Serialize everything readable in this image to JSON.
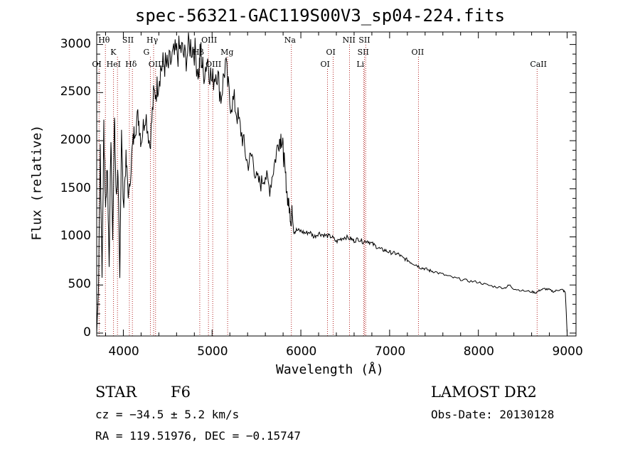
{
  "title": "spec-56321-GAC119S00V3_sp04-224.fits",
  "info": {
    "class_label": "STAR",
    "subclass": "F6",
    "cz": "cz = −34.5 ± 5.2 km/s",
    "radec": "RA = 119.51976, DEC =  −0.15747",
    "survey": "LAMOST DR2",
    "obs_date": "Obs-Date: 20130128"
  },
  "chart_data": {
    "type": "line",
    "title": "spec-56321-GAC119S00V3_sp04-224.fits",
    "xlabel": "Wavelength (Å)",
    "ylabel": "Flux (relative)",
    "xlim": [
      3700,
      9100
    ],
    "ylim": [
      -30,
      3130
    ],
    "xticks": [
      4000,
      5000,
      6000,
      7000,
      8000,
      9000
    ],
    "yticks": [
      0,
      500,
      1000,
      1500,
      2000,
      2500,
      3000
    ],
    "grid": false,
    "line_color": "#000000",
    "marker_color": "#b22222",
    "spectrum": {
      "x": [
        3700,
        3720,
        3740,
        3760,
        3780,
        3800,
        3820,
        3840,
        3860,
        3880,
        3900,
        3920,
        3940,
        3960,
        3980,
        4000,
        4030,
        4060,
        4100,
        4130,
        4170,
        4200,
        4250,
        4300,
        4340,
        4380,
        4420,
        4460,
        4500,
        4550,
        4600,
        4650,
        4700,
        4750,
        4800,
        4850,
        4870,
        4900,
        4950,
        5000,
        5050,
        5100,
        5150,
        5200,
        5250,
        5300,
        5350,
        5400,
        5450,
        5500,
        5550,
        5600,
        5650,
        5700,
        5750,
        5780,
        5800,
        5820,
        5850,
        5870,
        5890,
        5900,
        5920,
        5950,
        6000,
        6050,
        6100,
        6150,
        6200,
        6250,
        6300,
        6350,
        6400,
        6450,
        6500,
        6560,
        6600,
        6650,
        6700,
        6750,
        6800,
        6850,
        6900,
        6950,
        7000,
        7050,
        7100,
        7150,
        7200,
        7250,
        7300,
        7350,
        7400,
        7450,
        7500,
        7600,
        7700,
        7800,
        7900,
        8000,
        8100,
        8200,
        8300,
        8350,
        8400,
        8500,
        8600,
        8650,
        8700,
        8750,
        8800,
        8850,
        8900,
        8950,
        8980,
        9000
      ],
      "y": [
        0,
        450,
        1900,
        600,
        2100,
        1300,
        1750,
        700,
        2050,
        1000,
        2200,
        1400,
        1700,
        550,
        2150,
        1300,
        1800,
        1400,
        1900,
        2150,
        2250,
        2000,
        2300,
        1950,
        2450,
        2550,
        2750,
        2800,
        2750,
        2850,
        2900,
        2950,
        2850,
        3000,
        2950,
        2700,
        2950,
        2700,
        2850,
        2600,
        2750,
        2450,
        2800,
        2400,
        2400,
        2200,
        2000,
        1750,
        1850,
        1600,
        1550,
        1650,
        1500,
        1750,
        2000,
        2050,
        1900,
        1700,
        1400,
        1300,
        1150,
        1300,
        1050,
        1070,
        1060,
        1040,
        1050,
        1000,
        1040,
        1020,
        1010,
        1000,
        950,
        980,
        1000,
        980,
        960,
        980,
        950,
        960,
        930,
        900,
        870,
        860,
        840,
        830,
        820,
        780,
        760,
        730,
        710,
        680,
        670,
        650,
        640,
        610,
        580,
        560,
        540,
        530,
        500,
        480,
        470,
        500,
        460,
        440,
        430,
        420,
        450,
        460,
        450,
        430,
        450,
        450,
        420,
        0
      ]
    },
    "lines": [
      {
        "name": "Hθ",
        "wave": 3798,
        "row": 0
      },
      {
        "name": "CaII",
        "wave": 3934,
        "row": 1,
        "label": "K"
      },
      {
        "name": "SII",
        "wave": 4068,
        "row": 0
      },
      {
        "name": "Hγ",
        "wave": 4341,
        "row": 0
      },
      {
        "name": "G",
        "wave": 4305,
        "row": 1
      },
      {
        "name": "OI",
        "wave": 3727,
        "row": 2
      },
      {
        "name": "HeI",
        "wave": 3889,
        "row": 2
      },
      {
        "name": "Hδ",
        "wave": 4102,
        "row": 2
      },
      {
        "name": "OIII",
        "wave": 4363,
        "row": 2
      },
      {
        "name": "OIII",
        "wave": 4959,
        "row": 0
      },
      {
        "name": "Hβ",
        "wave": 4861,
        "row": 1
      },
      {
        "name": "OIII",
        "wave": 5007,
        "row": 2
      },
      {
        "name": "Mg",
        "wave": 5175,
        "row": 1
      },
      {
        "name": "Na",
        "wave": 5893,
        "row": 0
      },
      {
        "name": "OI",
        "wave": 6364,
        "row": 1
      },
      {
        "name": "OI",
        "wave": 6300,
        "row": 2
      },
      {
        "name": "NII",
        "wave": 6548,
        "row": 0
      },
      {
        "name": "SII",
        "wave": 6731,
        "row": 0
      },
      {
        "name": "SII",
        "wave": 6717,
        "row": 1
      },
      {
        "name": "Li",
        "wave": 6707,
        "row": 2
      },
      {
        "name": "OII",
        "wave": 7325,
        "row": 1
      },
      {
        "name": "CaII",
        "wave": 8662,
        "row": 2
      }
    ]
  }
}
